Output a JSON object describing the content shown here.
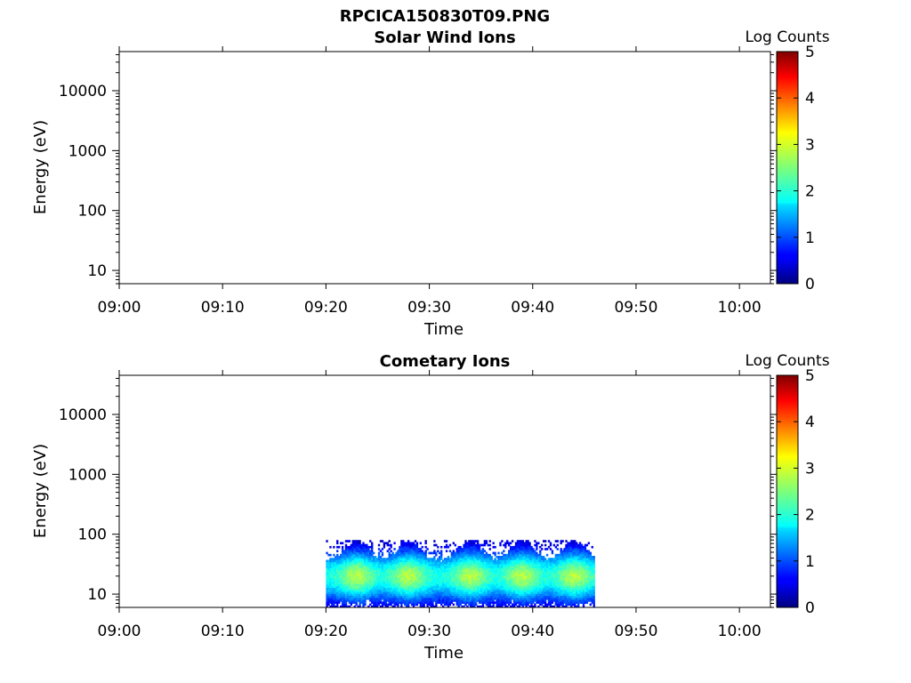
{
  "figure": {
    "title": "RPCICA150830T09.PNG"
  },
  "chart_data": [
    {
      "type": "heatmap",
      "title": "Solar Wind Ions",
      "xlabel": "Time",
      "ylabel": "Energy (eV)",
      "x_ticks": [
        "09:00",
        "09:10",
        "09:20",
        "09:30",
        "09:40",
        "09:50",
        "10:00"
      ],
      "x_range": [
        "09:00",
        "10:03"
      ],
      "y_scale": "log",
      "y_ticks": [
        "10",
        "100",
        "1000",
        "10000"
      ],
      "y_range": [
        6,
        45000
      ],
      "colorbar": {
        "label": "Log Counts",
        "ticks": [
          "0",
          "1",
          "2",
          "3",
          "4",
          "5"
        ],
        "range": [
          0,
          5
        ],
        "colormap": "jet"
      },
      "data": "none"
    },
    {
      "type": "heatmap",
      "title": "Cometary Ions",
      "xlabel": "Time",
      "ylabel": "Energy (eV)",
      "x_ticks": [
        "09:00",
        "09:10",
        "09:20",
        "09:30",
        "09:40",
        "09:50",
        "10:00"
      ],
      "x_range": [
        "09:00",
        "10:03"
      ],
      "y_scale": "log",
      "y_ticks": [
        "10",
        "100",
        "1000",
        "10000"
      ],
      "y_range": [
        6,
        45000
      ],
      "colorbar": {
        "label": "Log Counts",
        "ticks": [
          "0",
          "1",
          "2",
          "3",
          "4",
          "5"
        ],
        "range": [
          0,
          5
        ],
        "colormap": "jet"
      },
      "data_time_range": [
        "09:20",
        "09:46"
      ],
      "data_energy_range_eV": [
        6,
        80
      ],
      "peak_energy_eV": 20,
      "peak_log_counts_approx": 2.7,
      "peak_modulation_times": [
        "09:23",
        "09:28",
        "09:34",
        "09:39",
        "09:44"
      ]
    }
  ]
}
